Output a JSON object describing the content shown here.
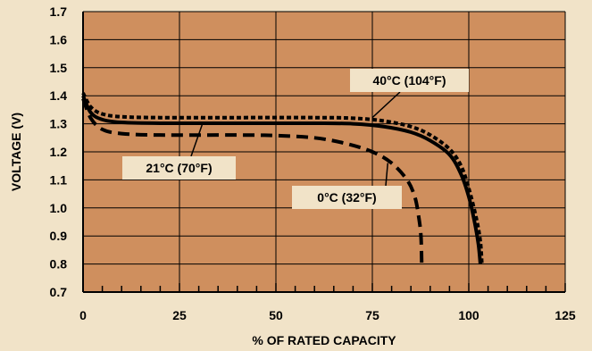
{
  "chart_data": {
    "type": "line",
    "xlabel": "% OF RATED CAPACITY",
    "ylabel": "VOLTAGE (V)",
    "xlim": [
      0,
      125
    ],
    "ylim": [
      0.7,
      1.7
    ],
    "x_ticks": [
      0,
      25,
      50,
      75,
      100,
      125
    ],
    "y_ticks": [
      0.7,
      0.8,
      0.9,
      1.0,
      1.1,
      1.2,
      1.3,
      1.4,
      1.5,
      1.6,
      1.7
    ],
    "x_tick_labels": [
      "0",
      "25",
      "50",
      "75",
      "100",
      "125"
    ],
    "y_tick_labels": [
      "0.7",
      "0.8",
      "0.9",
      "1.0",
      "1.1",
      "1.2",
      "1.3",
      "1.4",
      "1.5",
      "1.6",
      "1.7"
    ],
    "grid": true,
    "colors": {
      "plot_background": "#cf8f5e",
      "page_background": "#f1e3c8",
      "lines": "#000000"
    },
    "series": [
      {
        "name": "40°C (104°F)",
        "style": "dotted",
        "points": [
          [
            0,
            1.41
          ],
          [
            2,
            1.36
          ],
          [
            5,
            1.335
          ],
          [
            10,
            1.325
          ],
          [
            20,
            1.322
          ],
          [
            40,
            1.322
          ],
          [
            60,
            1.322
          ],
          [
            70,
            1.32
          ],
          [
            78,
            1.31
          ],
          [
            85,
            1.29
          ],
          [
            90,
            1.26
          ],
          [
            95,
            1.21
          ],
          [
            98,
            1.15
          ],
          [
            100,
            1.07
          ],
          [
            102,
            0.96
          ],
          [
            103,
            0.88
          ],
          [
            103.4,
            0.8
          ]
        ]
      },
      {
        "name": "21°C (70°F)",
        "style": "solid",
        "points": [
          [
            0,
            1.4
          ],
          [
            2,
            1.34
          ],
          [
            5,
            1.315
          ],
          [
            10,
            1.305
          ],
          [
            20,
            1.302
          ],
          [
            40,
            1.302
          ],
          [
            60,
            1.302
          ],
          [
            70,
            1.3
          ],
          [
            78,
            1.29
          ],
          [
            85,
            1.27
          ],
          [
            90,
            1.24
          ],
          [
            95,
            1.19
          ],
          [
            98,
            1.12
          ],
          [
            100,
            1.04
          ],
          [
            101.5,
            0.95
          ],
          [
            102.5,
            0.87
          ],
          [
            103,
            0.8
          ]
        ]
      },
      {
        "name": "0°C (32°F)",
        "style": "dashed",
        "points": [
          [
            0,
            1.39
          ],
          [
            2,
            1.32
          ],
          [
            5,
            1.28
          ],
          [
            10,
            1.265
          ],
          [
            20,
            1.26
          ],
          [
            40,
            1.26
          ],
          [
            50,
            1.258
          ],
          [
            60,
            1.25
          ],
          [
            68,
            1.23
          ],
          [
            75,
            1.2
          ],
          [
            80,
            1.16
          ],
          [
            84,
            1.1
          ],
          [
            86,
            1.04
          ],
          [
            87,
            0.97
          ],
          [
            87.6,
            0.9
          ],
          [
            87.8,
            0.8
          ]
        ]
      }
    ],
    "annotations": [
      {
        "text": "40°C (104°F)",
        "series": "40°C (104°F)"
      },
      {
        "text": "21°C (70°F)",
        "series": "21°C (70°F)"
      },
      {
        "text": "0°C (32°F)",
        "series": "0°C (32°F)"
      }
    ]
  }
}
